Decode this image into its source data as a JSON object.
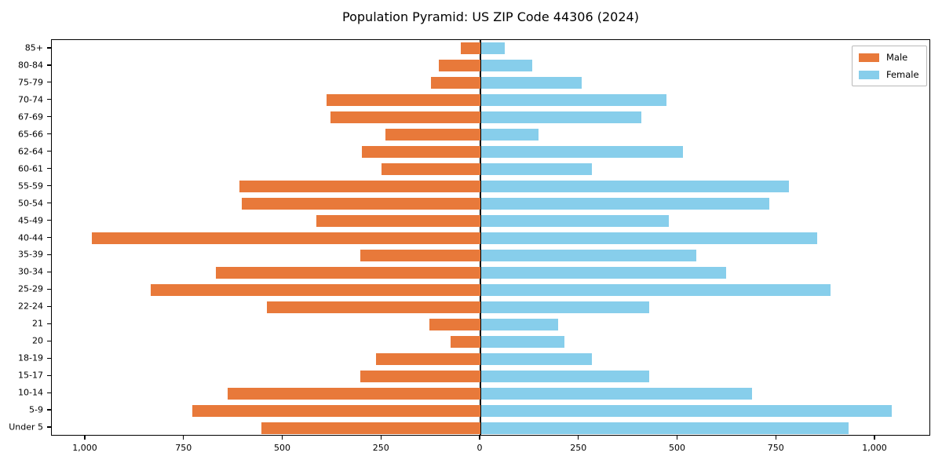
{
  "title": "Population Pyramid: US ZIP Code 44306 (2024)",
  "legend": {
    "male_label": "Male",
    "female_label": "Female",
    "position": "top-right"
  },
  "colors": {
    "male": "#E8793A",
    "female": "#87CEEB",
    "axis": "#000000",
    "background": "#FFFFFF"
  },
  "chart_data": {
    "type": "bar",
    "subtype": "population-pyramid",
    "orientation": "horizontal",
    "title": "Population Pyramid: US ZIP Code 44306 (2024)",
    "xlabel": "",
    "ylabel": "",
    "grid": false,
    "legend_position": "upper right",
    "categories_top_to_bottom": [
      "85+",
      "80-84",
      "75-79",
      "70-74",
      "67-69",
      "65-66",
      "62-64",
      "60-61",
      "55-59",
      "50-54",
      "45-49",
      "40-44",
      "35-39",
      "30-34",
      "25-29",
      "22-24",
      "21",
      "20",
      "18-19",
      "15-17",
      "10-14",
      "5-9",
      "Under 5"
    ],
    "series": [
      {
        "name": "Male",
        "side": "left",
        "color": "#E8793A",
        "values": [
          50,
          105,
          125,
          390,
          380,
          240,
          300,
          250,
          610,
          605,
          415,
          985,
          305,
          670,
          835,
          540,
          130,
          75,
          265,
          305,
          640,
          730,
          555
        ]
      },
      {
        "name": "Female",
        "side": "right",
        "color": "#87CEEB",
        "values": [
          60,
          130,
          255,
          470,
          405,
          145,
          510,
          280,
          780,
          730,
          475,
          850,
          545,
          620,
          885,
          425,
          195,
          210,
          280,
          425,
          685,
          1040,
          930
        ]
      }
    ],
    "x_tick_values": [
      -1000,
      -750,
      -500,
      -250,
      0,
      250,
      500,
      750,
      1000
    ],
    "x_tick_labels": [
      "1,000",
      "750",
      "500",
      "250",
      "0",
      "250",
      "500",
      "750",
      "1,000"
    ],
    "xlim": [
      -1150,
      1150
    ]
  }
}
